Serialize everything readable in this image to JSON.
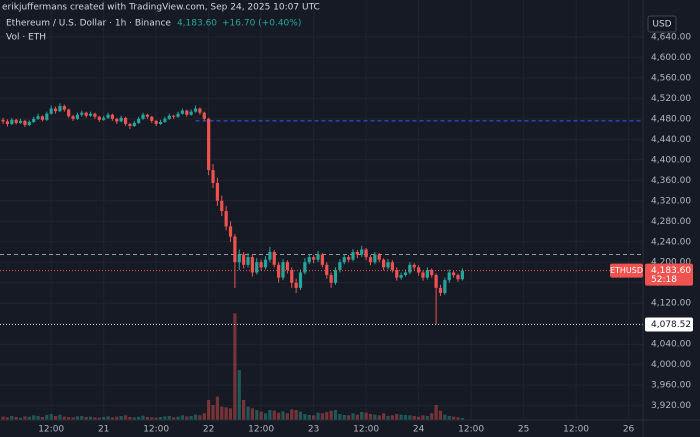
{
  "header": "erikjuffermans created with TradingView.com, Sep 24, 2025 10:07 UTC",
  "chart_data": {
    "type": "candlestick",
    "title": "Ethereum / U.S. Dollar · 1h · Binance",
    "change": "+16.70 (+0.40%)",
    "volume_label": "Vol · ETH",
    "currency": "USD",
    "symbol": "ETHUSD",
    "countdown": "52:18",
    "last_price": {
      "value": 4183.6,
      "label": "4,183.60"
    },
    "low_price": {
      "value": 4078.52,
      "label": "4,078.52"
    },
    "up_color": "#26a69a",
    "down_color": "#ef5350",
    "grid": true,
    "xlim": [
      -0.7,
      146.3
    ],
    "xticks": [
      {
        "value": 11,
        "label": "12:00"
      },
      {
        "value": 23,
        "label": "21"
      },
      {
        "value": 35,
        "label": "12:00"
      },
      {
        "value": 47,
        "label": "22"
      },
      {
        "value": 59,
        "label": "12:00"
      },
      {
        "value": 71,
        "label": "23"
      },
      {
        "value": 83,
        "label": "12:00"
      },
      {
        "value": 95,
        "label": "24"
      },
      {
        "value": 107,
        "label": "12:00"
      },
      {
        "value": 119,
        "label": "25"
      },
      {
        "value": 131,
        "label": "12:00"
      },
      {
        "value": 143,
        "label": "26"
      }
    ],
    "ylim": [
      3892,
      4712
    ],
    "yticks": [
      {
        "value": 4640,
        "label": "4,640.00"
      },
      {
        "value": 4600,
        "label": "4,600.00"
      },
      {
        "value": 4560,
        "label": "4,560.00"
      },
      {
        "value": 4520,
        "label": "4,520.00"
      },
      {
        "value": 4480,
        "label": "4,480.00"
      },
      {
        "value": 4440,
        "label": "4,440.00"
      },
      {
        "value": 4400,
        "label": "4,400.00"
      },
      {
        "value": 4360,
        "label": "4,360.00"
      },
      {
        "value": 4320,
        "label": "4,320.00"
      },
      {
        "value": 4280,
        "label": "4,280.00"
      },
      {
        "value": 4240,
        "label": "4,240.00"
      },
      {
        "value": 4200,
        "label": "4,200.00"
      },
      {
        "value": 4160,
        "label": "4,160.00"
      },
      {
        "value": 4120,
        "label": "4,120.00"
      },
      {
        "value": 4080,
        "label": "4,080.00"
      },
      {
        "value": 4040,
        "label": "4,040.00"
      },
      {
        "value": 4000,
        "label": "4,000.00"
      },
      {
        "value": 3960,
        "label": "3,960.00"
      },
      {
        "value": 3920,
        "label": "3,920.00"
      }
    ],
    "price_lines": [
      {
        "value": 4476,
        "color": "#2962ff"
      },
      {
        "value": 4215,
        "color": "#9598a1"
      }
    ],
    "vlim": [
      0,
      330
    ],
    "ohlc": [
      [
        4478,
        4482,
        4470,
        4475
      ],
      [
        4475,
        4479,
        4465,
        4470
      ],
      [
        4470,
        4482,
        4468,
        4478
      ],
      [
        4478,
        4480,
        4469,
        4472
      ],
      [
        4472,
        4480,
        4470,
        4476
      ],
      [
        4476,
        4478,
        4464,
        4468
      ],
      [
        4468,
        4477,
        4466,
        4474
      ],
      [
        4474,
        4484,
        4472,
        4480
      ],
      [
        4480,
        4490,
        4478,
        4485
      ],
      [
        4485,
        4487,
        4475,
        4478
      ],
      [
        4478,
        4494,
        4476,
        4490
      ],
      [
        4490,
        4506,
        4488,
        4500
      ],
      [
        4500,
        4504,
        4490,
        4495
      ],
      [
        4495,
        4510,
        4493,
        4505
      ],
      [
        4505,
        4508,
        4494,
        4498
      ],
      [
        4498,
        4500,
        4482,
        4485
      ],
      [
        4485,
        4488,
        4476,
        4480
      ],
      [
        4480,
        4492,
        4478,
        4488
      ],
      [
        4488,
        4496,
        4484,
        4492
      ],
      [
        4492,
        4494,
        4482,
        4486
      ],
      [
        4486,
        4494,
        4484,
        4490
      ],
      [
        4490,
        4492,
        4480,
        4484
      ],
      [
        4484,
        4486,
        4474,
        4478
      ],
      [
        4478,
        4486,
        4476,
        4482
      ],
      [
        4482,
        4492,
        4480,
        4488
      ],
      [
        4488,
        4490,
        4476,
        4480
      ],
      [
        4480,
        4482,
        4470,
        4475
      ],
      [
        4475,
        4486,
        4473,
        4482
      ],
      [
        4482,
        4484,
        4466,
        4470
      ],
      [
        4470,
        4472,
        4460,
        4466
      ],
      [
        4466,
        4476,
        4464,
        4472
      ],
      [
        4472,
        4484,
        4470,
        4480
      ],
      [
        4480,
        4492,
        4478,
        4488
      ],
      [
        4488,
        4490,
        4480,
        4484
      ],
      [
        4484,
        4486,
        4472,
        4476
      ],
      [
        4476,
        4478,
        4466,
        4470
      ],
      [
        4470,
        4478,
        4468,
        4474
      ],
      [
        4474,
        4484,
        4472,
        4480
      ],
      [
        4480,
        4490,
        4478,
        4486
      ],
      [
        4486,
        4488,
        4480,
        4484
      ],
      [
        4484,
        4494,
        4482,
        4490
      ],
      [
        4490,
        4500,
        4488,
        4496
      ],
      [
        4496,
        4498,
        4484,
        4488
      ],
      [
        4488,
        4498,
        4486,
        4494
      ],
      [
        4494,
        4506,
        4492,
        4500
      ],
      [
        4500,
        4502,
        4488,
        4492
      ],
      [
        4492,
        4494,
        4476,
        4480
      ],
      [
        4480,
        4482,
        4370,
        4380
      ],
      [
        4380,
        4392,
        4345,
        4355
      ],
      [
        4355,
        4365,
        4310,
        4320
      ],
      [
        4320,
        4330,
        4290,
        4300
      ],
      [
        4300,
        4310,
        4262,
        4270
      ],
      [
        4270,
        4280,
        4240,
        4250
      ],
      [
        4250,
        4255,
        4150,
        4200
      ],
      [
        4200,
        4225,
        4185,
        4215
      ],
      [
        4215,
        4220,
        4188,
        4195
      ],
      [
        4195,
        4218,
        4190,
        4210
      ],
      [
        4210,
        4214,
        4172,
        4180
      ],
      [
        4180,
        4208,
        4176,
        4200
      ],
      [
        4200,
        4205,
        4184,
        4190
      ],
      [
        4190,
        4212,
        4186,
        4205
      ],
      [
        4205,
        4230,
        4200,
        4220
      ],
      [
        4220,
        4224,
        4190,
        4195
      ],
      [
        4195,
        4200,
        4160,
        4170
      ],
      [
        4170,
        4206,
        4165,
        4200
      ],
      [
        4200,
        4204,
        4178,
        4185
      ],
      [
        4185,
        4190,
        4150,
        4160
      ],
      [
        4160,
        4168,
        4140,
        4150
      ],
      [
        4150,
        4186,
        4146,
        4180
      ],
      [
        4180,
        4208,
        4176,
        4200
      ],
      [
        4200,
        4216,
        4196,
        4210
      ],
      [
        4210,
        4214,
        4198,
        4205
      ],
      [
        4205,
        4222,
        4200,
        4215
      ],
      [
        4215,
        4218,
        4190,
        4195
      ],
      [
        4195,
        4200,
        4168,
        4175
      ],
      [
        4175,
        4180,
        4150,
        4160
      ],
      [
        4160,
        4190,
        4156,
        4185
      ],
      [
        4185,
        4206,
        4180,
        4200
      ],
      [
        4200,
        4216,
        4196,
        4210
      ],
      [
        4210,
        4214,
        4200,
        4205
      ],
      [
        4205,
        4226,
        4202,
        4220
      ],
      [
        4220,
        4224,
        4208,
        4215
      ],
      [
        4215,
        4232,
        4210,
        4225
      ],
      [
        4225,
        4228,
        4204,
        4210
      ],
      [
        4210,
        4214,
        4194,
        4200
      ],
      [
        4200,
        4220,
        4196,
        4215
      ],
      [
        4215,
        4218,
        4200,
        4205
      ],
      [
        4205,
        4208,
        4184,
        4190
      ],
      [
        4190,
        4206,
        4186,
        4200
      ],
      [
        4200,
        4204,
        4180,
        4185
      ],
      [
        4185,
        4190,
        4164,
        4170
      ],
      [
        4170,
        4180,
        4166,
        4175
      ],
      [
        4175,
        4186,
        4172,
        4180
      ],
      [
        4180,
        4200,
        4176,
        4195
      ],
      [
        4195,
        4198,
        4184,
        4190
      ],
      [
        4190,
        4194,
        4174,
        4180
      ],
      [
        4180,
        4184,
        4164,
        4170
      ],
      [
        4170,
        4190,
        4166,
        4185
      ],
      [
        4185,
        4188,
        4170,
        4175
      ],
      [
        4175,
        4178,
        4078.52,
        4150
      ],
      [
        4150,
        4156,
        4134,
        4140
      ],
      [
        4140,
        4170,
        4136,
        4165
      ],
      [
        4165,
        4186,
        4160,
        4180
      ],
      [
        4180,
        4184,
        4170,
        4175
      ],
      [
        4175,
        4178,
        4162,
        4166.9
      ],
      [
        4166.9,
        4188,
        4164,
        4183.6
      ]
    ],
    "volume": [
      10,
      8,
      12,
      9,
      7,
      11,
      10,
      14,
      12,
      9,
      15,
      18,
      12,
      16,
      10,
      9,
      8,
      11,
      12,
      9,
      10,
      8,
      7,
      9,
      11,
      8,
      10,
      12,
      14,
      9,
      8,
      10,
      13,
      9,
      8,
      7,
      9,
      11,
      12,
      8,
      10,
      14,
      11,
      12,
      16,
      14,
      20,
      60,
      45,
      70,
      40,
      38,
      35,
      320,
      150,
      60,
      40,
      35,
      30,
      25,
      20,
      30,
      28,
      22,
      26,
      20,
      32,
      30,
      25,
      18,
      15,
      14,
      22,
      20,
      24,
      28,
      30,
      18,
      15,
      14,
      20,
      16,
      24,
      22,
      18,
      16,
      14,
      20,
      12,
      14,
      18,
      16,
      15,
      14,
      12,
      10,
      14,
      12,
      20,
      45,
      28,
      16,
      12,
      10,
      8,
      6
    ]
  }
}
